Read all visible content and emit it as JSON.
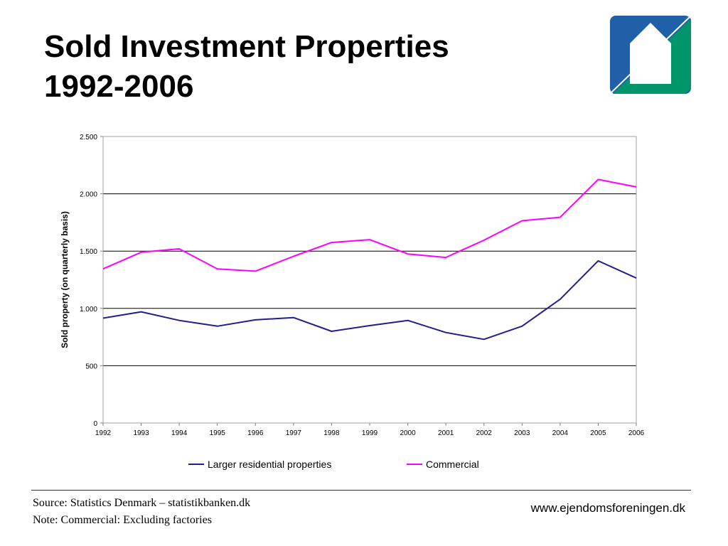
{
  "header": {
    "title_line1": "Sold Investment Properties",
    "title_line2": "1992-2006"
  },
  "logo": {
    "icon": "house-logo-icon",
    "colors": {
      "left": "#2060a8",
      "right": "#00966a",
      "house": "#ffffff"
    }
  },
  "footer": {
    "source": "Source: Statistics Denmark – statistikbanken.dk",
    "note": "Note: Commercial: Excluding factories",
    "website": "www.ejendomsforeningen.dk"
  },
  "chart_data": {
    "type": "line",
    "title": "",
    "xlabel": "",
    "ylabel": "Sold property (on quarterly basis)",
    "x": [
      "1992",
      "1993",
      "1994",
      "1995",
      "1996",
      "1997",
      "1998",
      "1999",
      "2000",
      "2001",
      "2002",
      "2003",
      "2004",
      "2005",
      "2006"
    ],
    "ylim": [
      0,
      2500
    ],
    "yticks": [
      0,
      500,
      1000,
      1500,
      2000,
      2500
    ],
    "ytick_labels": [
      "0",
      "500",
      "1.000",
      "1.500",
      "2.000",
      "2.500"
    ],
    "grid": true,
    "legend_position": "bottom",
    "series": [
      {
        "name": "Larger residential properties",
        "color": "#1f1f8f",
        "values": [
          915,
          970,
          895,
          845,
          900,
          920,
          800,
          850,
          895,
          790,
          730,
          845,
          1080,
          1415,
          1265
        ]
      },
      {
        "name": "Commercial",
        "color": "#ff00ff",
        "values": [
          1345,
          1490,
          1520,
          1345,
          1325,
          1455,
          1575,
          1600,
          1475,
          1445,
          1595,
          1765,
          1795,
          2125,
          2060
        ]
      }
    ]
  }
}
